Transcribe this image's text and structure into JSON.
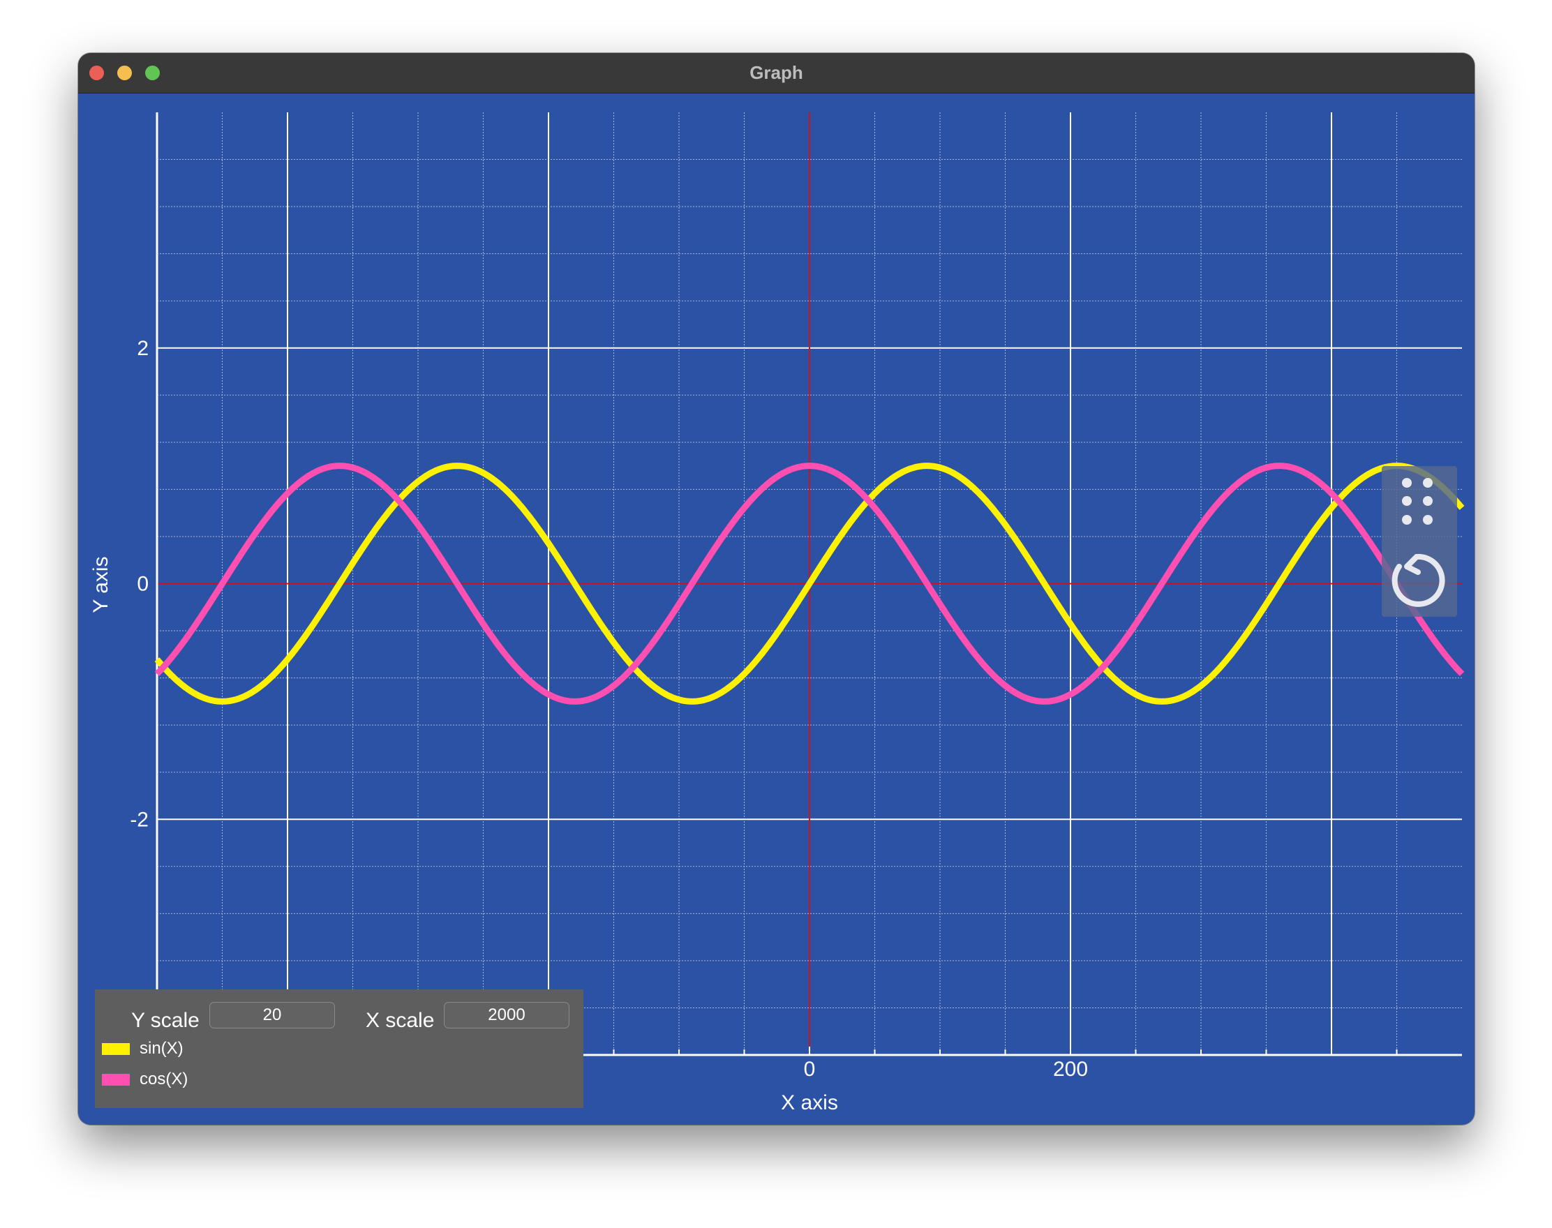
{
  "window": {
    "title": "Graph"
  },
  "chart_data": {
    "type": "line",
    "xlabel": "X axis",
    "ylabel": "Y axis",
    "xlim": [
      -500,
      500
    ],
    "ylim": [
      -4,
      4
    ],
    "x_major_ticks": [
      0,
      200
    ],
    "y_major_ticks": [
      -2,
      0,
      2
    ],
    "grid": true,
    "series": [
      {
        "name": "sin(X)",
        "color": "#fff200",
        "function": "sin",
        "period_x": 360,
        "amplitude": 1
      },
      {
        "name": "cos(X)",
        "color": "#ff4fb0",
        "function": "cos",
        "period_x": 360,
        "amplitude": 1
      }
    ],
    "colors": {
      "background": "#2b52a5",
      "axis_zero": "#d0101a",
      "grid_major": "#ffffff",
      "grid_minor": "#a8b8dc"
    }
  },
  "controls": {
    "y_scale_label": "Y scale",
    "y_scale_value": "20",
    "x_scale_label": "X scale",
    "x_scale_value": "2000"
  },
  "toolbar": {
    "grip_icon": "grip-dots-icon",
    "reset_icon": "reset-rotate-icon"
  }
}
